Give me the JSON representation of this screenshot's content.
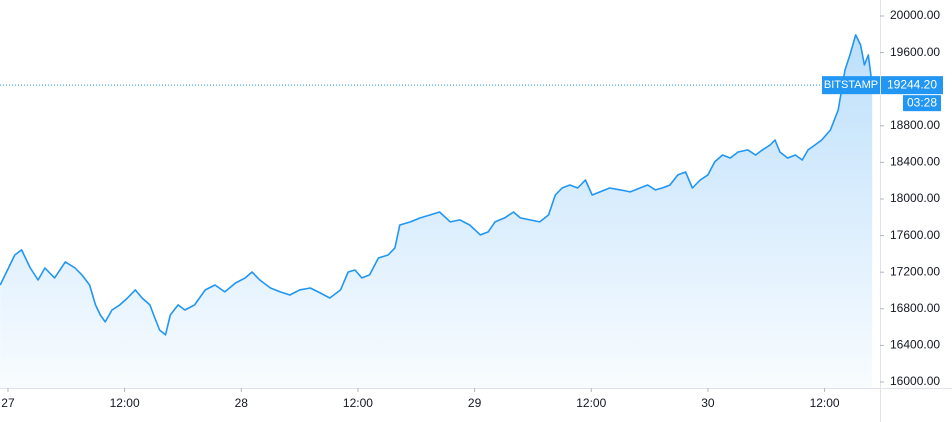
{
  "chart_data": {
    "type": "area",
    "x": [
      -0.8,
      -0.3,
      0.7,
      1.4,
      2.3,
      3.1,
      3.8,
      4.8,
      5.9,
      6.9,
      7.6,
      8.4,
      9.0,
      9.5,
      10.0,
      10.7,
      11.5,
      12.3,
      13.1,
      13.8,
      14.6,
      15.1,
      15.6,
      16.2,
      16.7,
      17.5,
      18.2,
      19.2,
      20.3,
      21.3,
      22.3,
      23.4,
      24.4,
      25.1,
      25.9,
      27.0,
      28.0,
      29.0,
      30.0,
      31.1,
      31.9,
      33.1,
      34.2,
      35.0,
      35.7,
      36.4,
      37.2,
      38.1,
      39.1,
      39.8,
      40.3,
      41.4,
      42.4,
      43.4,
      44.4,
      45.5,
      46.5,
      47.5,
      48.6,
      49.4,
      50.1,
      51.1,
      52.0,
      52.7,
      53.7,
      54.7,
      55.6,
      56.3,
      57.0,
      57.8,
      58.6,
      59.4,
      60.1,
      60.9,
      61.9,
      63.0,
      64.0,
      65.0,
      65.8,
      66.6,
      67.3,
      68.1,
      68.9,
      69.7,
      70.4,
      71.2,
      72.0,
      72.7,
      73.5,
      74.3,
      75.1,
      76.1,
      76.9,
      77.6,
      78.4,
      78.9,
      79.4,
      80.2,
      81.0,
      81.7,
      82.3,
      83.0,
      83.7,
      84.6,
      85.4,
      86.1,
      86.6,
      87.2,
      87.7,
      88.1,
      88.5,
      88.9
    ],
    "series": [
      {
        "name": "BITSTAMP",
        "color": "#2196f3",
        "values": [
          17060,
          17170,
          17388,
          17443,
          17246,
          17115,
          17246,
          17137,
          17312,
          17246,
          17170,
          17060,
          16842,
          16732,
          16656,
          16787,
          16842,
          16918,
          17006,
          16918,
          16842,
          16700,
          16568,
          16514,
          16732,
          16842,
          16787,
          16842,
          17006,
          17060,
          16984,
          17082,
          17137,
          17202,
          17115,
          17027,
          16984,
          16951,
          17006,
          17027,
          16984,
          16918,
          17006,
          17202,
          17224,
          17137,
          17170,
          17355,
          17388,
          17465,
          17716,
          17749,
          17793,
          17825,
          17858,
          17749,
          17771,
          17716,
          17607,
          17640,
          17749,
          17793,
          17858,
          17793,
          17771,
          17749,
          17825,
          18044,
          18120,
          18153,
          18120,
          18208,
          18044,
          18077,
          18120,
          18099,
          18077,
          18120,
          18153,
          18099,
          18120,
          18153,
          18263,
          18295,
          18120,
          18208,
          18263,
          18405,
          18481,
          18448,
          18514,
          18536,
          18481,
          18536,
          18590,
          18645,
          18514,
          18448,
          18481,
          18426,
          18536,
          18590,
          18645,
          18754,
          18973,
          19410,
          19574,
          19793,
          19683,
          19465,
          19574,
          19244.2
        ]
      }
    ],
    "xlim": [
      -0.82,
      89.7
    ],
    "xticks": [
      {
        "value": 0,
        "label": "27"
      },
      {
        "value": 12,
        "label": "12:00"
      },
      {
        "value": 24,
        "label": "28"
      },
      {
        "value": 36,
        "label": "12:00"
      },
      {
        "value": 48,
        "label": "29"
      },
      {
        "value": 60,
        "label": "12:00"
      },
      {
        "value": 72,
        "label": "30"
      },
      {
        "value": 84,
        "label": "12:00"
      }
    ],
    "ylim": [
      15934,
      20175
    ],
    "yticks": [
      {
        "value": 16000,
        "label": "16000.00"
      },
      {
        "value": 16400,
        "label": "16400.00"
      },
      {
        "value": 16800,
        "label": "16800.00"
      },
      {
        "value": 17200,
        "label": "17200.00"
      },
      {
        "value": 17600,
        "label": "17600.00"
      },
      {
        "value": 18000,
        "label": "18000.00"
      },
      {
        "value": 18400,
        "label": "18400.00"
      },
      {
        "value": 18800,
        "label": "18800.00"
      },
      {
        "value": 19600,
        "label": "19600.00"
      },
      {
        "value": 20000,
        "label": "20000.00"
      }
    ],
    "price_line": {
      "value": 19244.2,
      "label": "19244.20"
    },
    "countdown": "03:28"
  }
}
